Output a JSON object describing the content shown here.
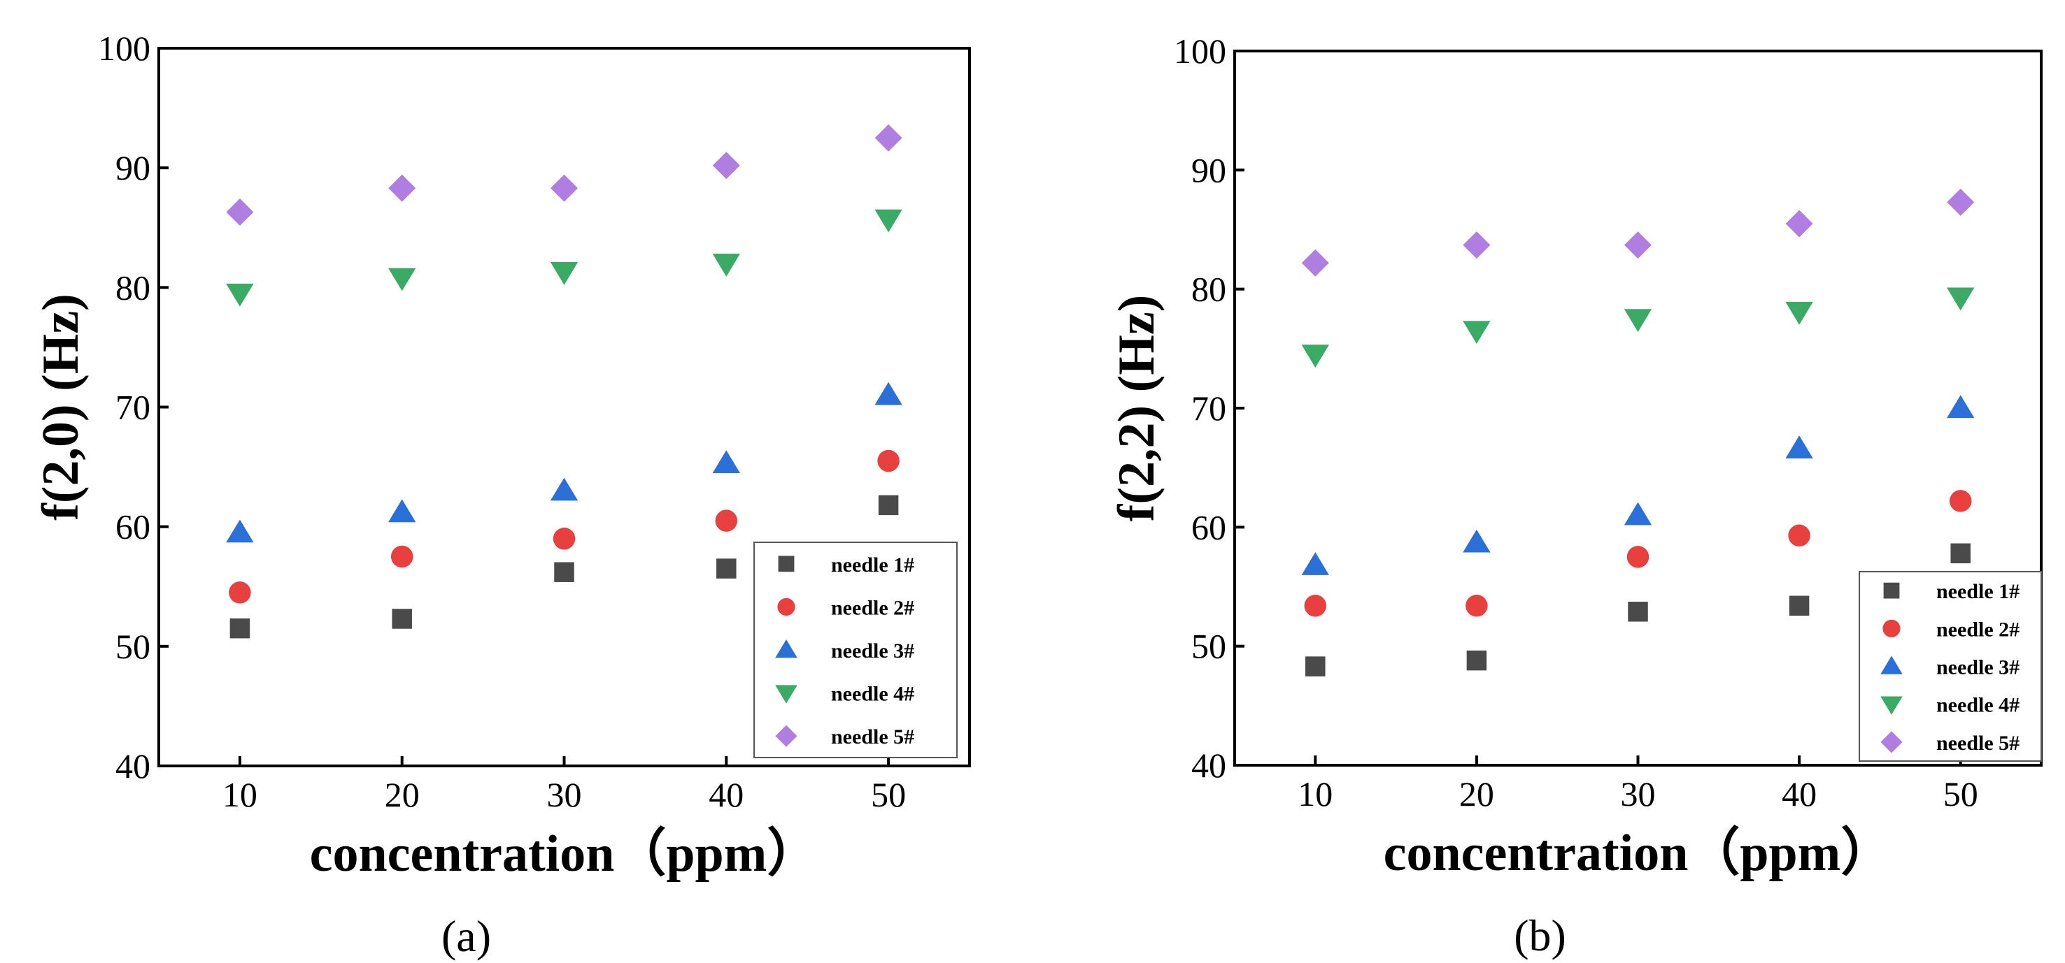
{
  "chart_data": [
    {
      "type": "scatter",
      "panel_label": "(a)",
      "xlabel": "concentration（ppm）",
      "ylabel": "f(2,0) (Hz)",
      "x": [
        10,
        20,
        30,
        40,
        50
      ],
      "xticks": [
        "10",
        "20",
        "30",
        "40",
        "50"
      ],
      "xlim": [
        5,
        55
      ],
      "ylim": [
        40,
        100
      ],
      "yticks": [
        "40",
        "50",
        "60",
        "70",
        "80",
        "90",
        "100"
      ],
      "legend_position": "bottom-right",
      "series": [
        {
          "name": "needle 1#",
          "marker": "square",
          "color": "#4a4a4a",
          "values": [
            51.5,
            52.3,
            56.2,
            56.5,
            61.8
          ]
        },
        {
          "name": "needle 2#",
          "marker": "circle",
          "color": "#e8403f",
          "values": [
            54.5,
            57.5,
            59.0,
            60.5,
            65.5
          ]
        },
        {
          "name": "needle 3#",
          "marker": "triangle-up",
          "color": "#2b6fd8",
          "values": [
            59.5,
            61.2,
            63.0,
            65.3,
            71.0
          ]
        },
        {
          "name": "needle 4#",
          "marker": "triangle-down",
          "color": "#3aaa65",
          "values": [
            79.5,
            80.8,
            81.3,
            82.0,
            85.7
          ]
        },
        {
          "name": "needle 5#",
          "marker": "diamond",
          "color": "#b07ee0",
          "values": [
            86.3,
            88.3,
            88.3,
            90.2,
            92.5
          ]
        }
      ]
    },
    {
      "type": "scatter",
      "panel_label": "(b)",
      "xlabel": "concentration（ppm）",
      "ylabel": "f(2,2) (Hz)",
      "x": [
        10,
        20,
        30,
        40,
        50
      ],
      "xticks": [
        "10",
        "20",
        "30",
        "40",
        "50"
      ],
      "xlim": [
        5,
        55
      ],
      "ylim": [
        40,
        100
      ],
      "yticks": [
        "40",
        "50",
        "60",
        "70",
        "80",
        "90",
        "100"
      ],
      "legend_position": "bottom-right",
      "series": [
        {
          "name": "needle 1#",
          "marker": "square",
          "color": "#4a4a4a",
          "values": [
            48.3,
            48.8,
            52.9,
            53.4,
            57.8
          ]
        },
        {
          "name": "needle 2#",
          "marker": "circle",
          "color": "#e8403f",
          "values": [
            53.4,
            53.4,
            57.5,
            59.3,
            62.2
          ]
        },
        {
          "name": "needle 3#",
          "marker": "triangle-up",
          "color": "#2b6fd8",
          "values": [
            56.8,
            58.7,
            61.0,
            66.6,
            70.0
          ]
        },
        {
          "name": "needle 4#",
          "marker": "triangle-down",
          "color": "#3aaa65",
          "values": [
            74.5,
            76.5,
            77.5,
            78.1,
            79.3
          ]
        },
        {
          "name": "needle 5#",
          "marker": "diamond",
          "color": "#b07ee0",
          "values": [
            82.2,
            83.7,
            83.7,
            85.5,
            87.3
          ]
        }
      ]
    }
  ]
}
